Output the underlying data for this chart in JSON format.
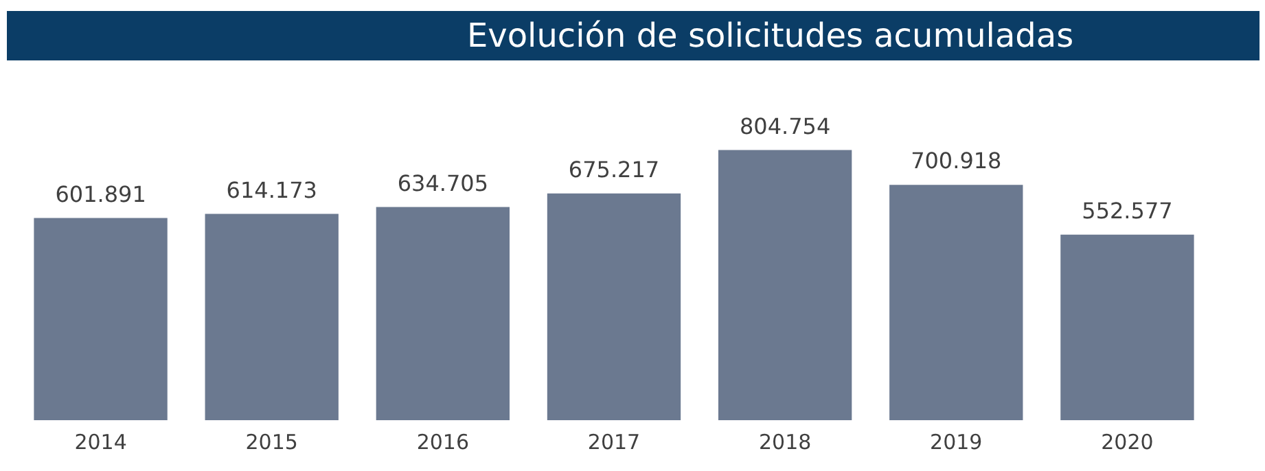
{
  "chart_data": {
    "type": "bar",
    "title": "Evolución de solicitudes acumuladas",
    "categories": [
      "2014",
      "2015",
      "2016",
      "2017",
      "2018",
      "2019",
      "2020"
    ],
    "values": [
      601891,
      614173,
      634705,
      675217,
      804754,
      700918,
      552577
    ],
    "value_labels": [
      "601.891",
      "614.173",
      "634.705",
      "675.217",
      "804.754",
      "700.918",
      "552.577"
    ],
    "color": "#6b7990",
    "relative": false,
    "grid": false,
    "legend": false
  }
}
